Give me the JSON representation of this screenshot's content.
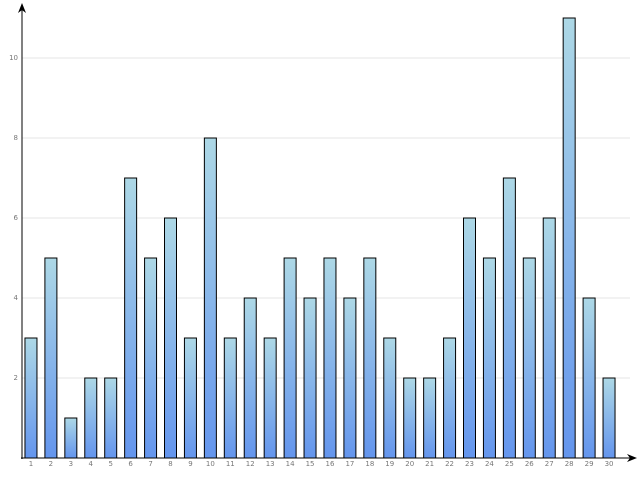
{
  "chart_data": {
    "type": "bar",
    "categories": [
      "1",
      "2",
      "3",
      "4",
      "5",
      "6",
      "7",
      "8",
      "9",
      "10",
      "11",
      "12",
      "13",
      "14",
      "15",
      "16",
      "17",
      "18",
      "19",
      "20",
      "21",
      "22",
      "23",
      "24",
      "25",
      "26",
      "27",
      "28",
      "29",
      "30"
    ],
    "values": [
      3,
      5,
      1,
      2,
      2,
      7,
      5,
      6,
      3,
      8,
      3,
      4,
      3,
      5,
      4,
      5,
      4,
      5,
      3,
      2,
      2,
      3,
      6,
      5,
      7,
      5,
      6,
      11,
      4,
      2
    ],
    "color": "#6495ed",
    "color_top": "#add8e6",
    "ylim": [
      0,
      11.3
    ],
    "yticks": [
      2,
      4,
      6,
      8,
      10
    ],
    "grid": true
  }
}
